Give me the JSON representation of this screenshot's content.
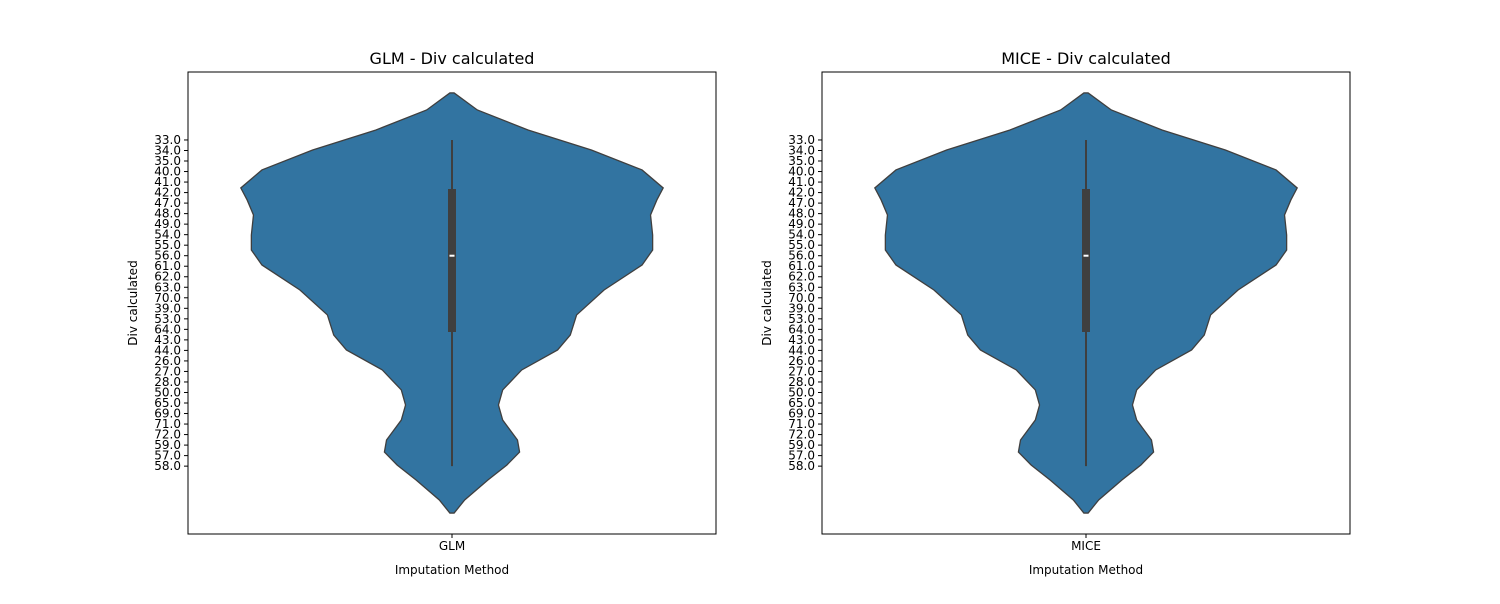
{
  "chart_data": [
    {
      "type": "violin",
      "title": "GLM - Div calculated",
      "xlabel": "Imputation Method",
      "ylabel": "Div calculated",
      "categories": [
        "GLM"
      ],
      "color": "#3274a1",
      "ylim": [
        37.45,
        -6.46
      ],
      "yticks": [
        {
          "value": 0,
          "label": "33.0"
        },
        {
          "value": 1,
          "label": "34.0"
        },
        {
          "value": 2,
          "label": "35.0"
        },
        {
          "value": 3,
          "label": "40.0"
        },
        {
          "value": 4,
          "label": "41.0"
        },
        {
          "value": 5,
          "label": "42.0"
        },
        {
          "value": 6,
          "label": "47.0"
        },
        {
          "value": 7,
          "label": "48.0"
        },
        {
          "value": 8,
          "label": "49.0"
        },
        {
          "value": 9,
          "label": "54.0"
        },
        {
          "value": 10,
          "label": "55.0"
        },
        {
          "value": 11,
          "label": "56.0"
        },
        {
          "value": 12,
          "label": "61.0"
        },
        {
          "value": 13,
          "label": "62.0"
        },
        {
          "value": 14,
          "label": "63.0"
        },
        {
          "value": 15,
          "label": "70.0"
        },
        {
          "value": 16,
          "label": "39.0"
        },
        {
          "value": 17,
          "label": "53.0"
        },
        {
          "value": 18,
          "label": "64.0"
        },
        {
          "value": 19,
          "label": "43.0"
        },
        {
          "value": 20,
          "label": "44.0"
        },
        {
          "value": 21,
          "label": "26.0"
        },
        {
          "value": 22,
          "label": "27.0"
        },
        {
          "value": 23,
          "label": "28.0"
        },
        {
          "value": 24,
          "label": "50.0"
        },
        {
          "value": 25,
          "label": "65.0"
        },
        {
          "value": 26,
          "label": "69.0"
        },
        {
          "value": 27,
          "label": "71.0"
        },
        {
          "value": 28,
          "label": "72.0"
        },
        {
          "value": 29,
          "label": "59.0"
        },
        {
          "value": 30,
          "label": "57.0"
        },
        {
          "value": 31,
          "label": "58.0"
        }
      ],
      "density_y": [
        -4.47,
        -2.85,
        -0.95,
        0.95,
        2.85,
        4.56,
        5.7,
        7.13,
        9.03,
        10.46,
        11.88,
        14.26,
        16.63,
        18.54,
        19.96,
        21.86,
        23.76,
        25.19,
        26.62,
        28.52,
        29.66,
        30.89,
        32.32,
        34.22,
        35.46
      ],
      "density": [
        0.01,
        0.12,
        0.36,
        0.66,
        0.9,
        1.0,
        0.97,
        0.94,
        0.95,
        0.95,
        0.9,
        0.72,
        0.59,
        0.56,
        0.5,
        0.33,
        0.24,
        0.22,
        0.24,
        0.31,
        0.32,
        0.26,
        0.17,
        0.06,
        0.01
      ],
      "whisker_low": 0,
      "q1": 4.66,
      "median": 11.0,
      "q3": 18.25,
      "whisker_high": 31
    },
    {
      "type": "violin",
      "title": "MICE - Div calculated",
      "xlabel": "Imputation Method",
      "ylabel": "Div calculated",
      "categories": [
        "MICE"
      ],
      "color": "#3274a1",
      "ylim": [
        37.45,
        -6.46
      ],
      "yticks": [
        {
          "value": 0,
          "label": "33.0"
        },
        {
          "value": 1,
          "label": "34.0"
        },
        {
          "value": 2,
          "label": "35.0"
        },
        {
          "value": 3,
          "label": "40.0"
        },
        {
          "value": 4,
          "label": "41.0"
        },
        {
          "value": 5,
          "label": "42.0"
        },
        {
          "value": 6,
          "label": "47.0"
        },
        {
          "value": 7,
          "label": "48.0"
        },
        {
          "value": 8,
          "label": "49.0"
        },
        {
          "value": 9,
          "label": "54.0"
        },
        {
          "value": 10,
          "label": "55.0"
        },
        {
          "value": 11,
          "label": "56.0"
        },
        {
          "value": 12,
          "label": "61.0"
        },
        {
          "value": 13,
          "label": "62.0"
        },
        {
          "value": 14,
          "label": "63.0"
        },
        {
          "value": 15,
          "label": "70.0"
        },
        {
          "value": 16,
          "label": "39.0"
        },
        {
          "value": 17,
          "label": "53.0"
        },
        {
          "value": 18,
          "label": "64.0"
        },
        {
          "value": 19,
          "label": "43.0"
        },
        {
          "value": 20,
          "label": "44.0"
        },
        {
          "value": 21,
          "label": "26.0"
        },
        {
          "value": 22,
          "label": "27.0"
        },
        {
          "value": 23,
          "label": "28.0"
        },
        {
          "value": 24,
          "label": "50.0"
        },
        {
          "value": 25,
          "label": "65.0"
        },
        {
          "value": 26,
          "label": "69.0"
        },
        {
          "value": 27,
          "label": "71.0"
        },
        {
          "value": 28,
          "label": "72.0"
        },
        {
          "value": 29,
          "label": "59.0"
        },
        {
          "value": 30,
          "label": "57.0"
        },
        {
          "value": 31,
          "label": "58.0"
        }
      ],
      "density_y": [
        -4.47,
        -2.85,
        -0.95,
        0.95,
        2.85,
        4.56,
        5.7,
        7.13,
        9.03,
        10.46,
        11.88,
        14.26,
        16.63,
        18.54,
        19.96,
        21.86,
        23.76,
        25.19,
        26.62,
        28.52,
        29.66,
        30.89,
        32.32,
        34.22,
        35.46
      ],
      "density": [
        0.01,
        0.12,
        0.36,
        0.66,
        0.9,
        1.0,
        0.97,
        0.94,
        0.95,
        0.95,
        0.9,
        0.72,
        0.59,
        0.56,
        0.5,
        0.33,
        0.24,
        0.22,
        0.24,
        0.31,
        0.32,
        0.26,
        0.17,
        0.06,
        0.01
      ],
      "whisker_low": 0,
      "q1": 4.66,
      "median": 11.0,
      "q3": 18.25,
      "whisker_high": 31
    }
  ]
}
